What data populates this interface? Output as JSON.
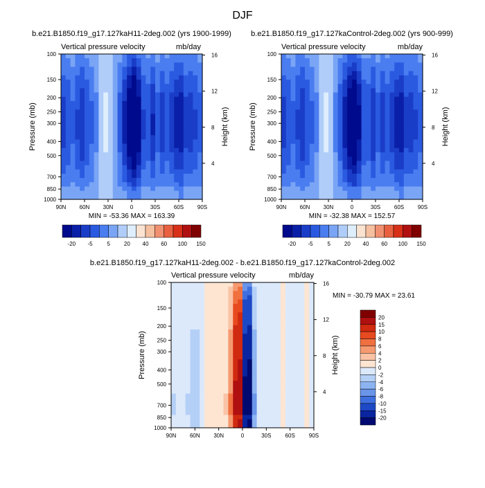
{
  "figure": {
    "title": "DJF"
  },
  "chart_data": [
    {
      "type": "heatmap",
      "id": "p1",
      "title": "b.e21.B1850.f19_g17.127kaH11-2deg.002 (yrs 1900-1999)",
      "left_label": "Vertical pressure velocity",
      "right_label": "mb/day",
      "ylabel": "Pressure (mb)",
      "ylabel_right": "Height (km)",
      "x_ticks": [
        "90N",
        "60N",
        "30N",
        "0",
        "30S",
        "60S",
        "90S"
      ],
      "y_ticks": [
        "100",
        "150",
        "200",
        "250",
        "300",
        "400",
        "500",
        "700",
        "850",
        "1000"
      ],
      "height_ticks": [
        "16",
        "12",
        "8",
        "4"
      ],
      "min_max": "MIN = -53.36   MAX = 163.39",
      "colorbar_labels": [
        "-20",
        "-5",
        "5",
        "20",
        "40",
        "60",
        "100",
        "150"
      ],
      "colorbar_colors": [
        "#000a8c",
        "#0a1fa8",
        "#1a3dc8",
        "#2a5ae0",
        "#4a7df0",
        "#7aa5f5",
        "#b0cdfa",
        "#dfeefc",
        "#fbe3d2",
        "#f5c0a0",
        "#f09070",
        "#e86040",
        "#d83018",
        "#b01010",
        "#800000"
      ],
      "profile": [
        -14,
        -12,
        -9,
        -13,
        -16,
        -12,
        -9,
        -5,
        3,
        5,
        3,
        -4,
        -10,
        -18,
        -26,
        -32,
        -24,
        -13,
        -11,
        -17,
        -10,
        -15,
        -11,
        -15,
        -19,
        -20,
        -14,
        -15,
        -13,
        -10
      ]
    },
    {
      "type": "heatmap",
      "id": "p2",
      "title": "b.e21.B1850.f19_g17.127kaControl-2deg.002 (yrs 900-999)",
      "left_label": "Vertical pressure velocity",
      "right_label": "mb/day",
      "ylabel": "Pressure (mb)",
      "ylabel_right": "Height (km)",
      "x_ticks": [
        "90N",
        "60N",
        "30N",
        "0",
        "30S",
        "60S",
        "90S"
      ],
      "y_ticks": [
        "100",
        "150",
        "200",
        "250",
        "300",
        "400",
        "500",
        "700",
        "850",
        "1000"
      ],
      "height_ticks": [
        "16",
        "12",
        "8",
        "4"
      ],
      "min_max": "MIN = -32.38   MAX = 152.57",
      "colorbar_labels": [
        "-20",
        "-5",
        "5",
        "20",
        "40",
        "60",
        "100",
        "150"
      ],
      "colorbar_colors": [
        "#000a8c",
        "#0a1fa8",
        "#1a3dc8",
        "#2a5ae0",
        "#4a7df0",
        "#7aa5f5",
        "#b0cdfa",
        "#dfeefc",
        "#fbe3d2",
        "#f5c0a0",
        "#f09070",
        "#e86040",
        "#d83018",
        "#b01010",
        "#800000"
      ],
      "profile": [
        -14,
        -12,
        -9,
        -13,
        -16,
        -12,
        -9,
        -5,
        3,
        5,
        2,
        -5,
        -11,
        -19,
        -26,
        -30,
        -22,
        -12,
        -11,
        -16,
        -10,
        -15,
        -11,
        -15,
        -19,
        -20,
        -14,
        -15,
        -13,
        -10
      ]
    },
    {
      "type": "heatmap",
      "id": "p3",
      "title": "b.e21.B1850.f19_g17.127kaH11-2deg.002 - b.e21.B1850.f19_g17.127kaControl-2deg.002",
      "left_label": "Vertical pressure velocity",
      "right_label": "mb/day",
      "ylabel": "Pressure (mb)",
      "ylabel_right": "Height (km)",
      "x_ticks": [
        "90N",
        "60N",
        "30N",
        "0",
        "30S",
        "60S",
        "90S"
      ],
      "y_ticks": [
        "100",
        "150",
        "200",
        "250",
        "300",
        "400",
        "500",
        "700",
        "850",
        "1000"
      ],
      "height_ticks": [
        "16",
        "12",
        "8",
        "4"
      ],
      "min_max": "MIN = -30.79   MAX =  23.61",
      "colorbar_labels": [
        "20",
        "15",
        "10",
        "8",
        "6",
        "4",
        "2",
        "0",
        "-2",
        "-4",
        "-6",
        "-8",
        "-10",
        "-15",
        "-20"
      ],
      "colorbar_colors": [
        "#800000",
        "#b01010",
        "#d02a10",
        "#e84a20",
        "#f07040",
        "#f59a70",
        "#fac3a6",
        "#fde5d2",
        "#dce9fb",
        "#b5d0f7",
        "#8db4f2",
        "#6a95ea",
        "#3f6fdf",
        "#1d49c6",
        "#0a25a0",
        "#000a70"
      ],
      "profile": [
        -2,
        -1,
        -1,
        -2,
        -3,
        -3,
        -1,
        0,
        1,
        1,
        1,
        2,
        6,
        16,
        18,
        -22,
        -24,
        -6,
        -1,
        -1,
        -1,
        -1,
        -1,
        0,
        -1,
        -1,
        -1,
        -1,
        0,
        -1
      ]
    }
  ]
}
